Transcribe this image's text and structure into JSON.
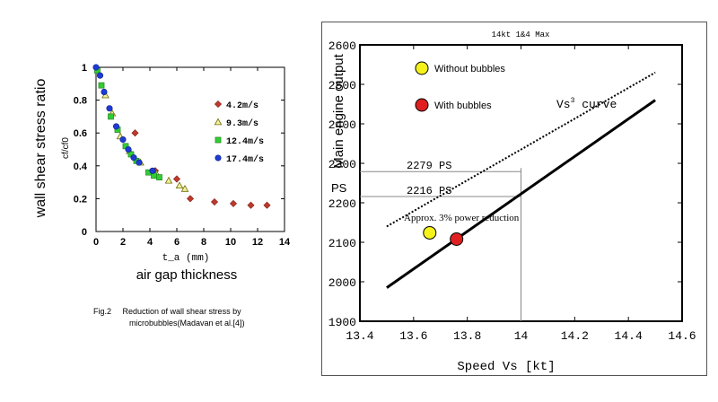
{
  "colors": {
    "red": "#c0392b",
    "yellow_tri": "#f4f2a0",
    "green": "#33cc33",
    "blue": "#1f3bd6",
    "marker_yellow": "#f5f21a",
    "marker_red": "#e02020"
  },
  "chart_data": [
    {
      "type": "scatter",
      "title": "",
      "xlabel": "t_a (mm)",
      "xlabel_caption": "air gap thickness",
      "ylabel": "wall shear stress ratio",
      "ylabel_sub": "cf/cf0",
      "xlim": [
        0,
        14
      ],
      "ylim": [
        0,
        1
      ],
      "x_ticks": [
        "0",
        "2",
        "4",
        "6",
        "8",
        "10",
        "12",
        "14"
      ],
      "y_ticks": [
        "0",
        "0.2",
        "0.4",
        "0.6",
        "0.8",
        "1"
      ],
      "caption_line1": "Fig.2     Reduction of wall shear stress by",
      "caption_line2": "microbubbles(Madavan et al.[4])",
      "series": [
        {
          "name": "4.2m/s",
          "marker": "diamond",
          "x": [
            2.9,
            4.4,
            6.0,
            7.0,
            8.8,
            10.2,
            11.5,
            12.7
          ],
          "y": [
            0.6,
            0.37,
            0.32,
            0.2,
            0.18,
            0.17,
            0.16,
            0.16
          ]
        },
        {
          "name": "9.3m/s",
          "marker": "triangle",
          "x": [
            0.7,
            1.2,
            1.8,
            2.5,
            3.3,
            4.5,
            5.4,
            6.2,
            6.6
          ],
          "y": [
            0.83,
            0.72,
            0.58,
            0.49,
            0.42,
            0.35,
            0.31,
            0.28,
            0.26
          ]
        },
        {
          "name": "12.4m/s",
          "marker": "square",
          "x": [
            0.1,
            0.4,
            1.1,
            1.6,
            2.2,
            2.6,
            3.0,
            3.9,
            4.3,
            4.7
          ],
          "y": [
            0.98,
            0.89,
            0.7,
            0.62,
            0.52,
            0.47,
            0.43,
            0.36,
            0.34,
            0.33
          ]
        },
        {
          "name": "17.4m/s",
          "marker": "circle",
          "x": [
            0.0,
            0.3,
            0.6,
            1.0,
            1.5,
            2.0,
            2.4,
            2.8,
            3.2,
            4.2
          ],
          "y": [
            1.0,
            0.95,
            0.85,
            0.75,
            0.64,
            0.56,
            0.5,
            0.45,
            0.42,
            0.37
          ]
        }
      ]
    },
    {
      "type": "line",
      "title": "14kt 1&4 Max",
      "xlabel": "Speed Vs [kt]",
      "ylabel": "Main engine output",
      "ylabel_unit": "PS",
      "xlim": [
        13.4,
        14.6
      ],
      "ylim": [
        1900,
        2600
      ],
      "x_ticks": [
        "13.4",
        "13.6",
        "13.8",
        "14",
        "14.2",
        "14.4",
        "14.6"
      ],
      "y_ticks": [
        "1900",
        "2000",
        "2100",
        "2200",
        "2300",
        "2400",
        "2500",
        "2600"
      ],
      "series": [
        {
          "name": "Vs3 curve (without bubbles)",
          "style": "dotted",
          "x": [
            13.5,
            14.5
          ],
          "y": [
            2140,
            2530
          ]
        },
        {
          "name": "with bubbles",
          "style": "solid",
          "x": [
            13.5,
            14.5
          ],
          "y": [
            1985,
            2460
          ]
        }
      ],
      "points": [
        {
          "name": "Without bubbles",
          "color": "yellow",
          "x": 13.66,
          "y": 2124
        },
        {
          "name": "With bubbles",
          "color": "red",
          "x": 13.76,
          "y": 2108
        }
      ],
      "reference_lines": [
        {
          "label": "2279 PS",
          "y": 2279,
          "x_end": 14.0
        },
        {
          "label": "2216 PS",
          "y": 2216,
          "x_end": 14.0
        }
      ],
      "vertical_reference_x": 14.0,
      "legend": [
        {
          "label": "Without bubbles",
          "color": "yellow"
        },
        {
          "label": "With bubbles",
          "color": "red"
        }
      ],
      "annotations": {
        "reduction": "Approx. 3% power reduction",
        "curve_label_prefix": "Vs",
        "curve_label_sup": "3",
        "curve_label_suffix": "curve"
      }
    }
  ]
}
